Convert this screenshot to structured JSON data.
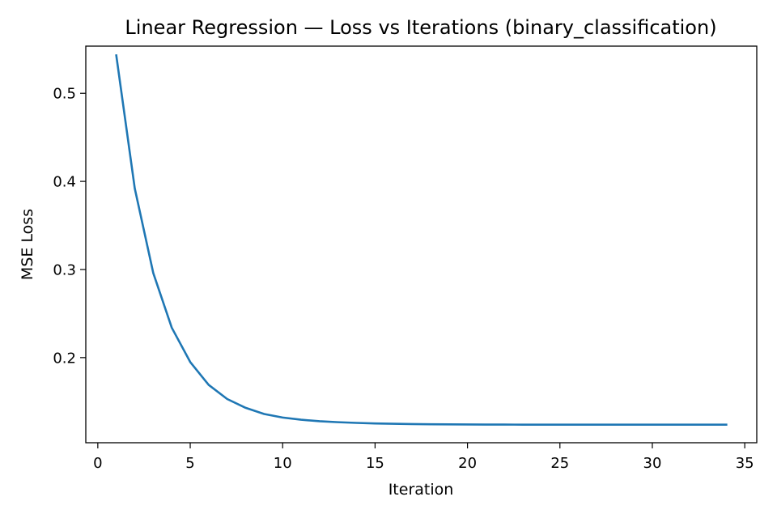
{
  "chart_data": {
    "type": "line",
    "title": "Linear Regression — Loss vs Iterations (binary_classification)",
    "xlabel": "Iteration",
    "ylabel": "MSE Loss",
    "xlim": [
      -0.65,
      35.65
    ],
    "ylim": [
      0.1034,
      0.5535
    ],
    "xticks": [
      0,
      5,
      10,
      15,
      20,
      25,
      30,
      35
    ],
    "yticks": [
      0.2,
      0.3,
      0.4,
      0.5
    ],
    "xtick_labels": [
      "0",
      "5",
      "10",
      "15",
      "20",
      "25",
      "30",
      "35"
    ],
    "ytick_labels": [
      "0.2",
      "0.3",
      "0.4",
      "0.5"
    ],
    "grid": false,
    "legend": "none",
    "series": [
      {
        "color": "#1f77b4",
        "x": [
          1,
          2,
          3,
          4,
          5,
          6,
          7,
          8,
          9,
          10,
          11,
          12,
          13,
          14,
          15,
          16,
          17,
          18,
          19,
          20,
          21,
          22,
          23,
          24,
          25,
          26,
          27,
          28,
          29,
          30,
          31,
          32,
          33,
          34
        ],
        "values": [
          0.543,
          0.392,
          0.296,
          0.234,
          0.195,
          0.169,
          0.153,
          0.143,
          0.136,
          0.132,
          0.1295,
          0.1278,
          0.1267,
          0.1259,
          0.1253,
          0.1249,
          0.1246,
          0.1244,
          0.1242,
          0.1241,
          0.124,
          0.124,
          0.1239,
          0.1239,
          0.1239,
          0.1239,
          0.1239,
          0.1239,
          0.1239,
          0.1239,
          0.1239,
          0.1239,
          0.1239,
          0.1239
        ]
      }
    ]
  }
}
